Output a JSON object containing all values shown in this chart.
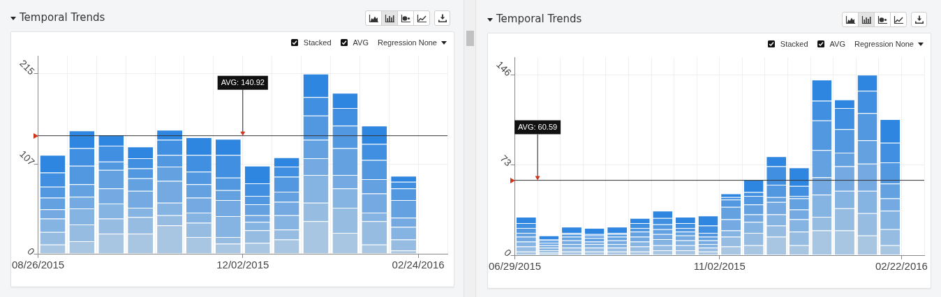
{
  "chart_data": [
    {
      "type": "bar",
      "title": "Temporal Trends",
      "x": [
        "2015-09-02",
        "2015-09-16",
        "2015-09-30",
        "2015-10-14",
        "2015-10-28",
        "2015-11-11",
        "2015-11-25",
        "2015-12-09",
        "2015-12-23",
        "2016-01-06",
        "2016-01-20",
        "2016-02-03",
        "2016-02-17"
      ],
      "series": [
        {
          "color": "#a8c5e2",
          "values": [
            11,
            15,
            24,
            24,
            34,
            20,
            12,
            13,
            17,
            39,
            25,
            11,
            4
          ]
        },
        {
          "color": "#97bce2",
          "values": [
            15,
            20,
            18,
            20,
            12,
            17,
            8,
            15,
            12,
            22,
            30,
            28,
            13
          ]
        },
        {
          "color": "#85b3e2",
          "values": [
            16,
            19,
            18,
            11,
            15,
            12,
            25,
            10,
            17,
            33,
            23,
            10,
            15
          ]
        },
        {
          "color": "#74aae1",
          "values": [
            11,
            14,
            18,
            20,
            26,
            18,
            19,
            8,
            16,
            20,
            16,
            23,
            11
          ]
        },
        {
          "color": "#63a1e1",
          "values": [
            14,
            15,
            22,
            15,
            17,
            16,
            12,
            13,
            12,
            22,
            32,
            17,
            21
          ]
        },
        {
          "color": "#5298e1",
          "values": [
            13,
            22,
            10,
            12,
            14,
            15,
            15,
            10,
            18,
            29,
            27,
            23,
            14
          ]
        },
        {
          "color": "#408fe0",
          "values": [
            17,
            21,
            19,
            12,
            18,
            20,
            27,
            15,
            12,
            22,
            21,
            19,
            8
          ]
        },
        {
          "color": "#2f86e0",
          "values": [
            21,
            21,
            13,
            14,
            12,
            21,
            19,
            21,
            11,
            28,
            18,
            22,
            7
          ]
        }
      ],
      "stacked": true,
      "xlim": [
        "2015-08-26",
        "2016-03-09"
      ],
      "xticks": [
        {
          "value": "2015-08-26",
          "label": "08/26/2015"
        },
        {
          "value": "2015-09-09",
          "label": null
        },
        {
          "value": "2015-09-23",
          "label": null
        },
        {
          "value": "2015-10-07",
          "label": null
        },
        {
          "value": "2015-10-21",
          "label": null
        },
        {
          "value": "2015-11-04",
          "label": null
        },
        {
          "value": "2015-11-18",
          "label": null
        },
        {
          "value": "2015-12-02",
          "label": "12/02/2015"
        },
        {
          "value": "2015-12-16",
          "label": null
        },
        {
          "value": "2015-12-30",
          "label": null
        },
        {
          "value": "2016-01-13",
          "label": null
        },
        {
          "value": "2016-01-27",
          "label": null
        },
        {
          "value": "2016-02-10",
          "label": null
        },
        {
          "value": "2016-02-24",
          "label": "02/24/2016"
        },
        {
          "value": "2016-03-09",
          "label": null
        }
      ],
      "ylim": [
        0,
        236
      ],
      "yticks": [
        0,
        107,
        215
      ],
      "grid": true,
      "ref_lines": [
        {
          "axis": "y",
          "value": 140.92,
          "color": "#333333"
        }
      ],
      "annotations": [
        "Stacked",
        "AVG",
        "Regression None",
        {
          "text": "AVG: 140.92",
          "x": "2015-12-02",
          "y": 140.92
        }
      ]
    },
    {
      "type": "bar",
      "title": "Temporal Trends",
      "x": [
        "2015-07-06",
        "2015-07-20",
        "2015-08-03",
        "2015-08-17",
        "2015-08-31",
        "2015-09-14",
        "2015-09-28",
        "2015-10-12",
        "2015-10-26",
        "2015-11-09",
        "2015-11-23",
        "2015-12-07",
        "2015-12-21",
        "2016-01-04",
        "2016-01-18",
        "2016-02-01",
        "2016-02-15"
      ],
      "series": [
        {
          "color": "#a8c5e2",
          "values": [
            3,
            2,
            3,
            3,
            3,
            3,
            4,
            4,
            3,
            7,
            8,
            15,
            8,
            20,
            20,
            16,
            8
          ]
        },
        {
          "color": "#97bce2",
          "values": [
            4,
            2,
            3,
            3,
            3,
            4,
            4,
            4,
            3,
            8,
            10,
            9,
            11,
            11,
            18,
            18,
            13
          ]
        },
        {
          "color": "#85b3e2",
          "values": [
            4,
            2,
            3,
            3,
            3,
            4,
            5,
            4,
            3,
            5,
            9,
            9,
            10,
            18,
            14,
            18,
            15
          ]
        },
        {
          "color": "#74aae1",
          "values": [
            4,
            2,
            3,
            2,
            3,
            4,
            4,
            4,
            3,
            9,
            6,
            10,
            8,
            14,
            20,
            22,
            10
          ]
        },
        {
          "color": "#63a1e1",
          "values": [
            3,
            2,
            3,
            3,
            3,
            4,
            4,
            3,
            3,
            10,
            8,
            4,
            9,
            22,
            11,
            19,
            12
          ]
        },
        {
          "color": "#5298e1",
          "values": [
            4,
            2,
            2,
            2,
            2,
            3,
            4,
            3,
            3,
            6,
            7,
            10,
            2,
            24,
            19,
            22,
            17
          ]
        },
        {
          "color": "#408fe0",
          "values": [
            4,
            1,
            1,
            1,
            1,
            4,
            5,
            4,
            6,
            2,
            3,
            15,
            8,
            16,
            17,
            18,
            16
          ]
        },
        {
          "color": "#2f86e0",
          "values": [
            5,
            3,
            5,
            5,
            5,
            4,
            6,
            5,
            8,
            3,
            10,
            8,
            15,
            17,
            7,
            13,
            19
          ]
        }
      ],
      "stacked": true,
      "xlim": [
        "2015-06-29",
        "2016-03-07"
      ],
      "xticks": [
        {
          "value": "2015-06-29",
          "label": "06/29/2015"
        },
        {
          "value": "2015-07-13",
          "label": null
        },
        {
          "value": "2015-07-27",
          "label": null
        },
        {
          "value": "2015-08-10",
          "label": null
        },
        {
          "value": "2015-08-24",
          "label": null
        },
        {
          "value": "2015-09-07",
          "label": null
        },
        {
          "value": "2015-09-21",
          "label": null
        },
        {
          "value": "2015-10-05",
          "label": null
        },
        {
          "value": "2015-10-19",
          "label": null
        },
        {
          "value": "2015-11-02",
          "label": "11/02/2015"
        },
        {
          "value": "2015-11-16",
          "label": null
        },
        {
          "value": "2015-11-30",
          "label": null
        },
        {
          "value": "2015-12-14",
          "label": null
        },
        {
          "value": "2015-12-28",
          "label": null
        },
        {
          "value": "2016-01-11",
          "label": null
        },
        {
          "value": "2016-01-25",
          "label": null
        },
        {
          "value": "2016-02-08",
          "label": null
        },
        {
          "value": "2016-02-22",
          "label": "02/22/2016"
        },
        {
          "value": "2016-03-07",
          "label": null
        }
      ],
      "ylim": [
        0,
        160
      ],
      "yticks": [
        0,
        73,
        146
      ],
      "grid": true,
      "ref_lines": [
        {
          "axis": "y",
          "value": 60.59,
          "color": "#333333"
        }
      ],
      "annotations": [
        "Stacked",
        "AVG",
        "Regression None",
        {
          "text": "AVG: 60.59",
          "x": "2015-07-13",
          "y": 60.59
        }
      ]
    }
  ]
}
